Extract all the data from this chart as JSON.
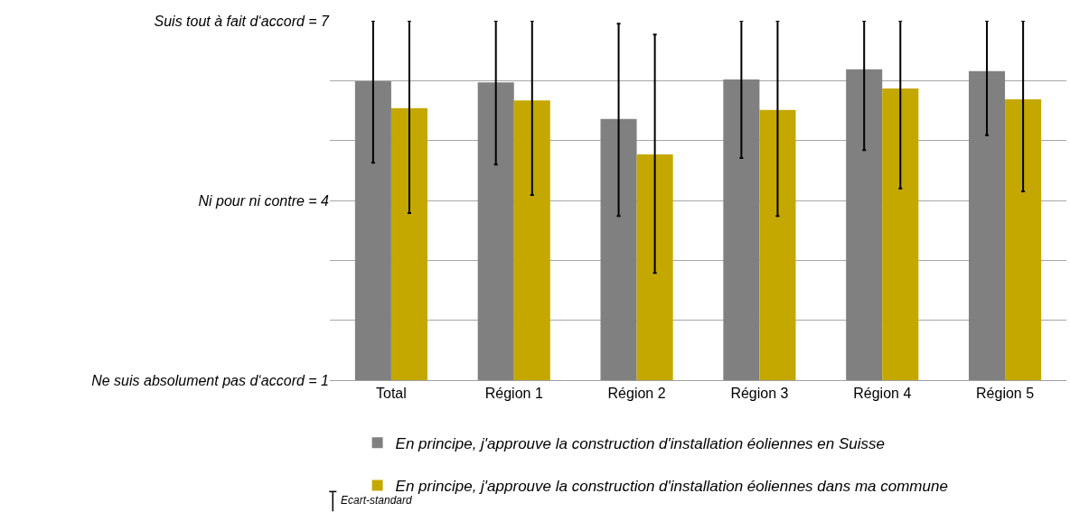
{
  "chart_data": {
    "type": "bar",
    "categories": [
      "Total",
      "Région 1",
      "Région 2",
      "Région 3",
      "Région 4",
      "Région 5"
    ],
    "series": [
      {
        "name": "En principe, j'approuve la construction d'installation éoliennes en Suisse",
        "color": "#808080",
        "values": [
          5.99,
          5.97,
          5.36,
          6.02,
          6.19,
          6.16
        ],
        "errors": [
          [
            4.63,
            7
          ],
          [
            4.6,
            7
          ],
          [
            3.74,
            6.95
          ],
          [
            4.71,
            7
          ],
          [
            4.84,
            7
          ],
          [
            5.09,
            7
          ]
        ]
      },
      {
        "name": "En principe, j'approuve la construction d'installation éoliennes dans ma commune",
        "color": "#c4a800",
        "values": [
          5.54,
          5.67,
          4.77,
          5.51,
          5.87,
          5.69
        ],
        "errors": [
          [
            3.79,
            7
          ],
          [
            4.09,
            7
          ],
          [
            2.79,
            6.77
          ],
          [
            3.74,
            7
          ],
          [
            4.2,
            7
          ],
          [
            4.15,
            7
          ]
        ]
      }
    ],
    "ylim": [
      1,
      7
    ],
    "yticks": [
      {
        "value": 1,
        "label": "Ne suis absolument pas d‘accord = 1"
      },
      {
        "value": 2,
        "label": null
      },
      {
        "value": 3,
        "label": null
      },
      {
        "value": 4,
        "label": "Ni pour ni contre = 4"
      },
      {
        "value": 5,
        "label": null
      },
      {
        "value": 6,
        "label": null
      },
      {
        "value": 7,
        "label": "Suis tout à fait d‘accord = 7"
      }
    ],
    "grid": "y",
    "legend": "bottom",
    "annotations": [
      "Ecart-standard"
    ]
  }
}
